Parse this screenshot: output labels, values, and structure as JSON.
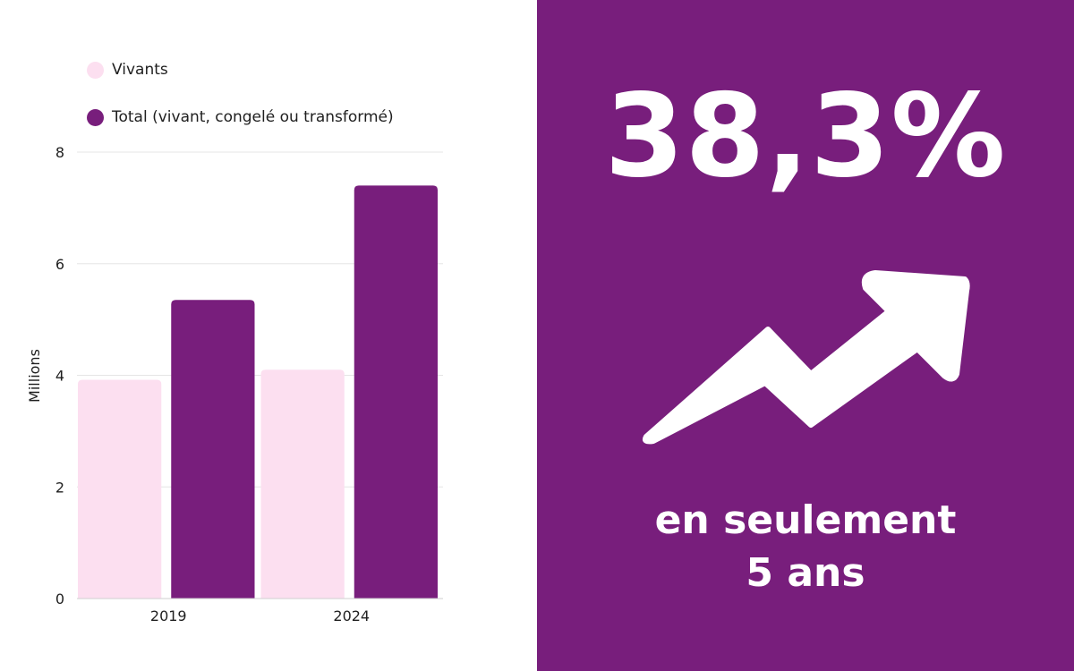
{
  "colors": {
    "vivants": "#fcdff0",
    "total": "#781e7c",
    "panel_bg": "#781e7c",
    "grid": "#e6e6e6",
    "text": "#1f1f1f",
    "white": "#ffffff"
  },
  "legend": [
    {
      "label": "Vivants",
      "color": "#fcdff0"
    },
    {
      "label": "Total (vivant, congelé ou transformé)",
      "color": "#781e7c"
    }
  ],
  "chart_data": {
    "type": "bar",
    "categories": [
      "2019",
      "2024"
    ],
    "series": [
      {
        "name": "Vivants",
        "values": [
          3.92,
          4.1
        ]
      },
      {
        "name": "Total (vivant, congelé ou transformé)",
        "values": [
          5.35,
          7.4
        ]
      }
    ],
    "ylabel": "Millions",
    "xlabel": "",
    "ylim": [
      0,
      8
    ],
    "yticks": [
      "0",
      "2",
      "4",
      "6",
      "8"
    ],
    "grid": true,
    "legend_position": "top-left"
  },
  "highlight": {
    "stat": "38,3%",
    "line1": "en seulement",
    "line2": "5 ans",
    "icon": "trend-up-arrow-icon"
  }
}
